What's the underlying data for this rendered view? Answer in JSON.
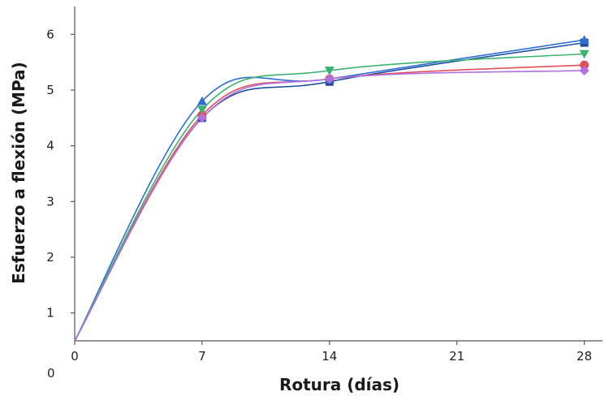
{
  "chart_data": {
    "type": "line",
    "xlabel": "Rotura (días)",
    "ylabel": "Esfuerzo a flexión (MPa)",
    "x_ticks": [
      "0",
      "7",
      "14",
      "21",
      "28"
    ],
    "y_ticks": [
      "1",
      "2",
      "3",
      "4",
      "5",
      "6"
    ],
    "x_origin_label": "0",
    "xlim": [
      0,
      29
    ],
    "ylim": [
      0.5,
      6.5
    ],
    "grid": false,
    "x": [
      0,
      7,
      14,
      28
    ],
    "series": [
      {
        "color": "#1f4e9e",
        "marker": "square",
        "values": [
          0.5,
          4.5,
          5.15,
          5.85
        ]
      },
      {
        "color": "#e0505a",
        "marker": "circle",
        "values": [
          0.5,
          4.55,
          5.2,
          5.45
        ]
      },
      {
        "color": "#2e6fd6",
        "marker": "triangle-up",
        "values": [
          0.5,
          4.8,
          5.2,
          5.9
        ]
      },
      {
        "color": "#3cb371",
        "marker": "triangle-down",
        "values": [
          0.5,
          4.65,
          5.35,
          5.65
        ]
      },
      {
        "color": "#b070e0",
        "marker": "diamond",
        "values": [
          0.5,
          4.5,
          5.2,
          5.35
        ]
      }
    ]
  }
}
